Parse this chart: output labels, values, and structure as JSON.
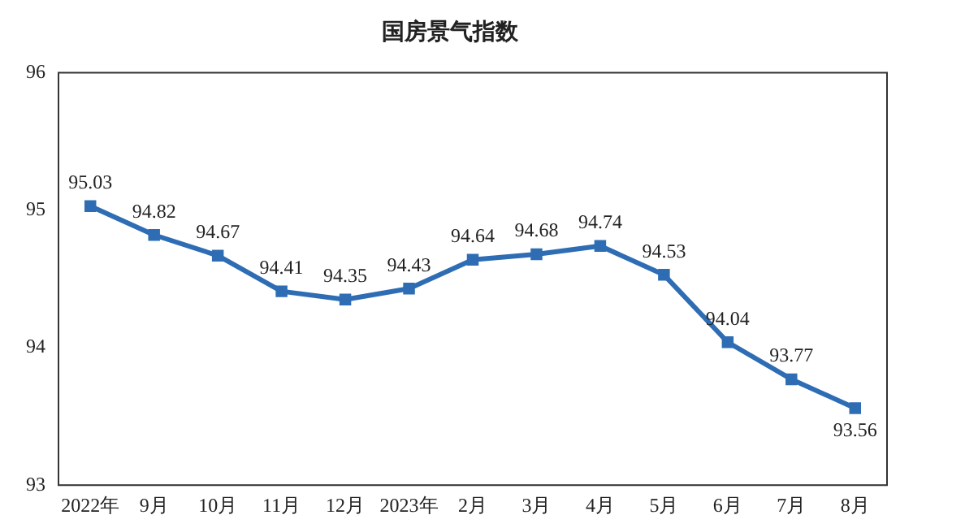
{
  "chart_data": {
    "type": "line",
    "title": "国房景气指数",
    "categories": [
      "2022年",
      "9月",
      "10月",
      "11月",
      "12月",
      "2023年",
      "2月",
      "3月",
      "4月",
      "5月",
      "6月",
      "7月",
      "8月"
    ],
    "series": [
      {
        "color": "#2e6db4",
        "values": [
          95.03,
          94.82,
          94.67,
          94.41,
          94.35,
          94.43,
          94.64,
          94.68,
          94.74,
          94.53,
          94.04,
          93.77,
          93.56
        ]
      }
    ],
    "ylim": [
      93,
      96
    ],
    "yticks": [
      93,
      94,
      95,
      96
    ],
    "grid": false,
    "legend": false,
    "marker": "square",
    "line_style": "solid",
    "data_labels": true
  }
}
